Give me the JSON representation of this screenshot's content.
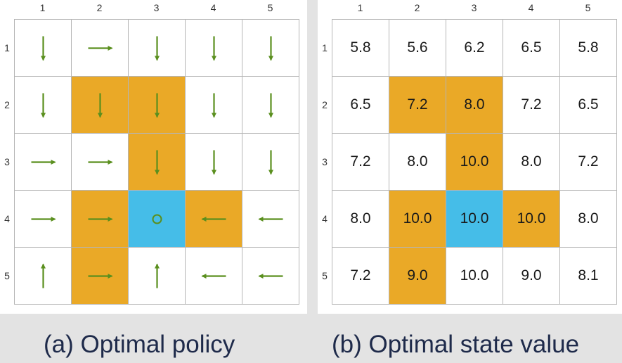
{
  "columns": [
    "1",
    "2",
    "3",
    "4",
    "5"
  ],
  "rows": [
    "1",
    "2",
    "3",
    "4",
    "5"
  ],
  "colors": {
    "forbidden": "#eaa927",
    "target": "#45bde8",
    "arrow": "#5a8f1e",
    "grid_line": "#b5b5b5"
  },
  "cell_types": [
    [
      "normal",
      "normal",
      "normal",
      "normal",
      "normal"
    ],
    [
      "normal",
      "forbidden",
      "forbidden",
      "normal",
      "normal"
    ],
    [
      "normal",
      "normal",
      "forbidden",
      "normal",
      "normal"
    ],
    [
      "normal",
      "forbidden",
      "target",
      "forbidden",
      "normal"
    ],
    [
      "normal",
      "forbidden",
      "normal",
      "normal",
      "normal"
    ]
  ],
  "policy": {
    "caption": "(a) Optimal policy",
    "actions": [
      [
        "down",
        "right",
        "down",
        "down",
        "down"
      ],
      [
        "down",
        "down",
        "down",
        "down",
        "down"
      ],
      [
        "right",
        "right",
        "down",
        "down",
        "down"
      ],
      [
        "right",
        "right",
        "stay",
        "left",
        "left"
      ],
      [
        "up",
        "right",
        "up",
        "left",
        "left"
      ]
    ]
  },
  "state_value": {
    "caption": "(b) Optimal state value",
    "values": [
      [
        "5.8",
        "5.6",
        "6.2",
        "6.5",
        "5.8"
      ],
      [
        "6.5",
        "7.2",
        "8.0",
        "7.2",
        "6.5"
      ],
      [
        "7.2",
        "8.0",
        "10.0",
        "8.0",
        "7.2"
      ],
      [
        "8.0",
        "10.0",
        "10.0",
        "10.0",
        "8.0"
      ],
      [
        "7.2",
        "9.0",
        "10.0",
        "9.0",
        "8.1"
      ]
    ]
  }
}
